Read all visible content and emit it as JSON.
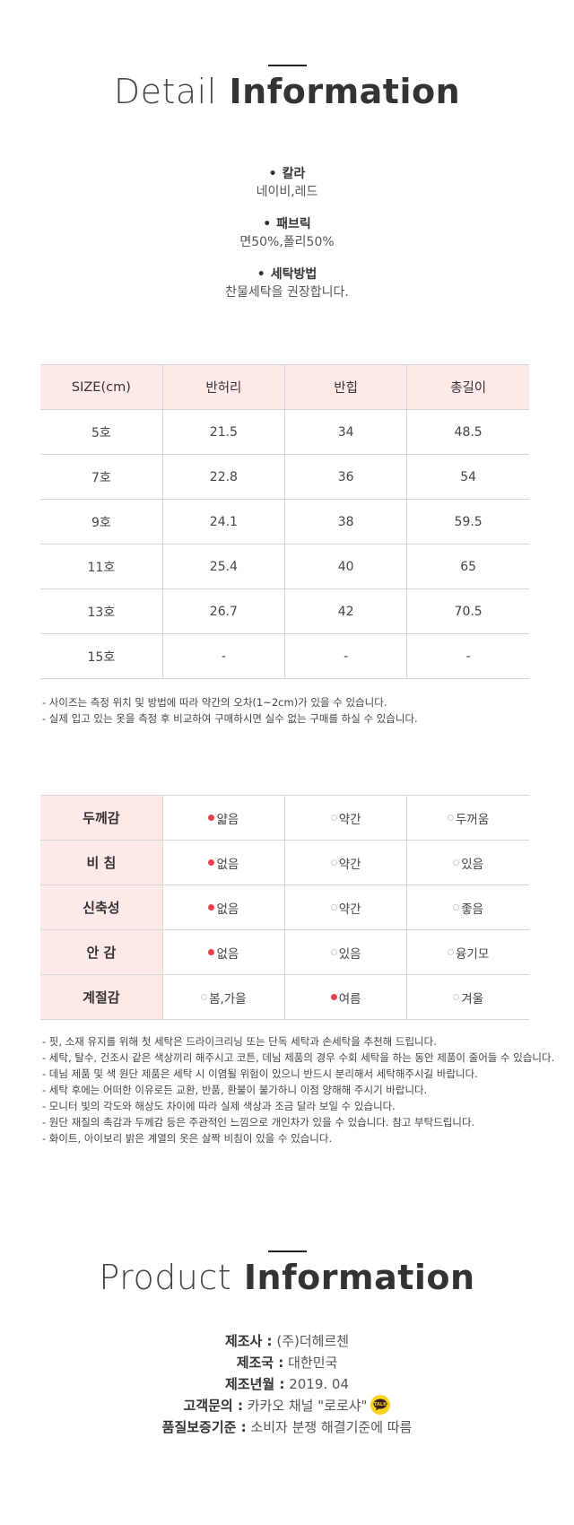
{
  "detail": {
    "title_light": "Detail",
    "title_bold": "Information",
    "specs": [
      {
        "bullet": "•",
        "label": "칼라",
        "value": "네이비,레드"
      },
      {
        "bullet": "•",
        "label": "패브릭",
        "value": "면50%,폴리50%"
      },
      {
        "bullet": "•",
        "label": "세탁방법",
        "value": "찬물세탁을 권장합니다."
      }
    ]
  },
  "size_table": {
    "headers": [
      "SIZE(cm)",
      "반허리",
      "반힙",
      "총길이"
    ],
    "rows": [
      [
        "5호",
        "21.5",
        "34",
        "48.5"
      ],
      [
        "7호",
        "22.8",
        "36",
        "54"
      ],
      [
        "9호",
        "24.1",
        "38",
        "59.5"
      ],
      [
        "11호",
        "25.4",
        "40",
        "65"
      ],
      [
        "13호",
        "26.7",
        "42",
        "70.5"
      ],
      [
        "15호",
        "-",
        "-",
        "-"
      ]
    ],
    "notes": [
      "- 사이즈는 측정 위치 및 방법에 따라 약간의 오차(1~2cm)가 있을 수 있습니다.",
      "- 실제 입고 있는 옷을 측정 후 비교하여 구매하시면 실수 없는 구매를 하실 수 있습니다."
    ]
  },
  "feel_table": {
    "rows": [
      {
        "label": "두께감",
        "options": [
          "얇음",
          "약간",
          "두꺼움"
        ],
        "selected": 0
      },
      {
        "label": "비 침",
        "options": [
          "없음",
          "약간",
          "있음"
        ],
        "selected": 0
      },
      {
        "label": "신축성",
        "options": [
          "없음",
          "약간",
          "좋음"
        ],
        "selected": 0
      },
      {
        "label": "안 감",
        "options": [
          "없음",
          "있음",
          "융기모"
        ],
        "selected": 0
      },
      {
        "label": "계절감",
        "options": [
          "봄,가을",
          "여름",
          "겨울"
        ],
        "selected": 1
      }
    ],
    "selected_color": "#e8404d",
    "notes": [
      "- 핏, 소재 유지를 위해 첫 세탁은 드라이크리닝 또는 단독 세탁과 손세탁을 추천해 드립니다.",
      "- 세탁, 탈수, 건조시 같은 색상끼리 해주시고 코튼, 데님 제품의 경우 수회 세탁을 하는 동안 제품이 줄어들 수 있습니다.",
      "- 데님 제품 및 색 원단 제품은 세탁 시 이염될 위험이 있으니 반드시 분리해서 세탁해주시길 바랍니다.",
      "- 세탁 후에는 어떠한 이유로든 교환, 반품, 환불이 불가하니 이점 양해해 주시기 바랍니다.",
      "- 모니터 빛의 각도와 해상도 차이에 따라 실제 색상과 조금 달라 보일 수 있습니다.",
      "- 원단 재질의 촉감과 두께감 등은 주관적인 느낌으로 개인차가 있을 수 있습니다. 참고 부탁드립니다.",
      "- 화이트, 아이보리 밝은 계열의 옷은 살짝 비침이 있을 수 있습니다."
    ]
  },
  "product": {
    "title_light": "Product",
    "title_bold": "Information",
    "rows": [
      {
        "key": "제조사 :",
        "value": "(주)더헤르첸"
      },
      {
        "key": "제조국 :",
        "value": "대한민국"
      },
      {
        "key": "제조년월 :",
        "value": "2019. 04"
      },
      {
        "key": "고객문의 :",
        "value": "카카오 채널 \"로로샤\"",
        "icon": "kakao-talk-icon"
      },
      {
        "key": "품질보증기준 :",
        "value": "소비자 분쟁 해결기준에 따름"
      }
    ],
    "icon_color": "#f6d21b"
  }
}
